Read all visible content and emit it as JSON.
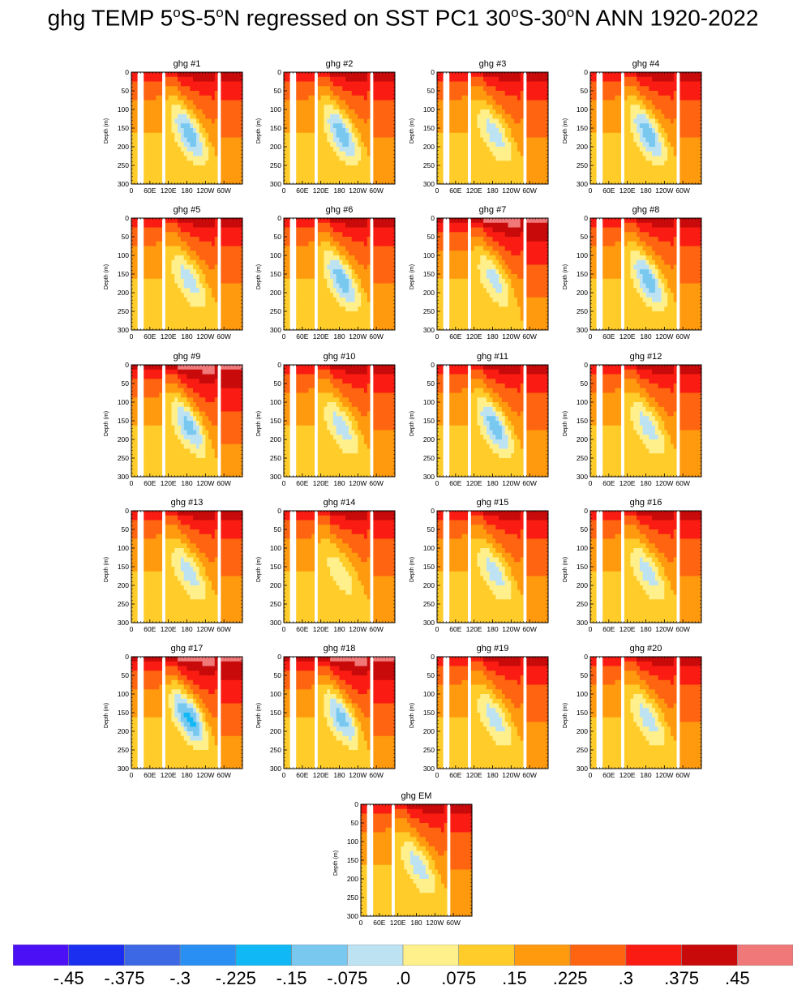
{
  "title": {
    "prefix": "ghg TEMP 5",
    "deg1": "o",
    "part2": "S-5",
    "deg2": "o",
    "part3": "N regressed on SST PC1 30",
    "deg3": "o",
    "part4": "S-30",
    "deg4": "o",
    "part5": "N ANN 1920-2022"
  },
  "chart_data": {
    "type": "heatmap",
    "description_units": "temperature regression coefficient",
    "panels": [
      {
        "title": "ghg #1",
        "core": -0.225,
        "surface": 0.375
      },
      {
        "title": "ghg #2",
        "core": -0.225,
        "surface": 0.375
      },
      {
        "title": "ghg #3",
        "core": -0.15,
        "surface": 0.375
      },
      {
        "title": "ghg #4",
        "core": -0.225,
        "surface": 0.375
      },
      {
        "title": "ghg #5",
        "core": -0.15,
        "surface": 0.375
      },
      {
        "title": "ghg #6",
        "core": -0.225,
        "surface": 0.375
      },
      {
        "title": "ghg #7",
        "core": -0.15,
        "surface": 0.45
      },
      {
        "title": "ghg #8",
        "core": -0.225,
        "surface": 0.375
      },
      {
        "title": "ghg #9",
        "core": -0.225,
        "surface": 0.45
      },
      {
        "title": "ghg #10",
        "core": -0.15,
        "surface": 0.375
      },
      {
        "title": "ghg #11",
        "core": -0.225,
        "surface": 0.375
      },
      {
        "title": "ghg #12",
        "core": -0.15,
        "surface": 0.375
      },
      {
        "title": "ghg #13",
        "core": -0.15,
        "surface": 0.375
      },
      {
        "title": "ghg #14",
        "core": -0.075,
        "surface": 0.375
      },
      {
        "title": "ghg #15",
        "core": -0.15,
        "surface": 0.375
      },
      {
        "title": "ghg #16",
        "core": -0.15,
        "surface": 0.375
      },
      {
        "title": "ghg #17",
        "core": -0.3,
        "surface": 0.45
      },
      {
        "title": "ghg #18",
        "core": -0.225,
        "surface": 0.45
      },
      {
        "title": "ghg #19",
        "core": -0.15,
        "surface": 0.375
      },
      {
        "title": "ghg #20",
        "core": -0.15,
        "surface": 0.375
      },
      {
        "title": "ghg EM",
        "core": -0.15,
        "surface": 0.375
      }
    ],
    "ylabel": "Depth (m)",
    "y_ticks": [
      "0",
      "50",
      "100",
      "150",
      "200",
      "250",
      "300"
    ],
    "ylim": [
      300,
      0
    ],
    "x_ticks": [
      "0",
      "60E",
      "120E",
      "180",
      "120W",
      "60W"
    ],
    "x_tick_values": [
      0,
      60,
      120,
      180,
      240,
      300
    ],
    "xlim": [
      0,
      360
    ],
    "land_gaps_lon": [
      [
        20,
        40
      ],
      [
        98,
        108
      ],
      [
        278,
        292
      ]
    ],
    "colorbar": {
      "colors": [
        "#4b10f5",
        "#1a2ff0",
        "#3c68e6",
        "#2a8ff3",
        "#10b8f5",
        "#78c8f0",
        "#bde3f3",
        "#fff08c",
        "#ffcc2a",
        "#ff9a0e",
        "#ff6410",
        "#fa1c12",
        "#c80a0a",
        "#f07878"
      ],
      "labels": [
        "-.45",
        "-.375",
        "-.3",
        "-.225",
        "-.15",
        "-.075",
        ".0",
        ".075",
        ".15",
        ".225",
        ".3",
        ".375",
        ".45"
      ]
    }
  }
}
